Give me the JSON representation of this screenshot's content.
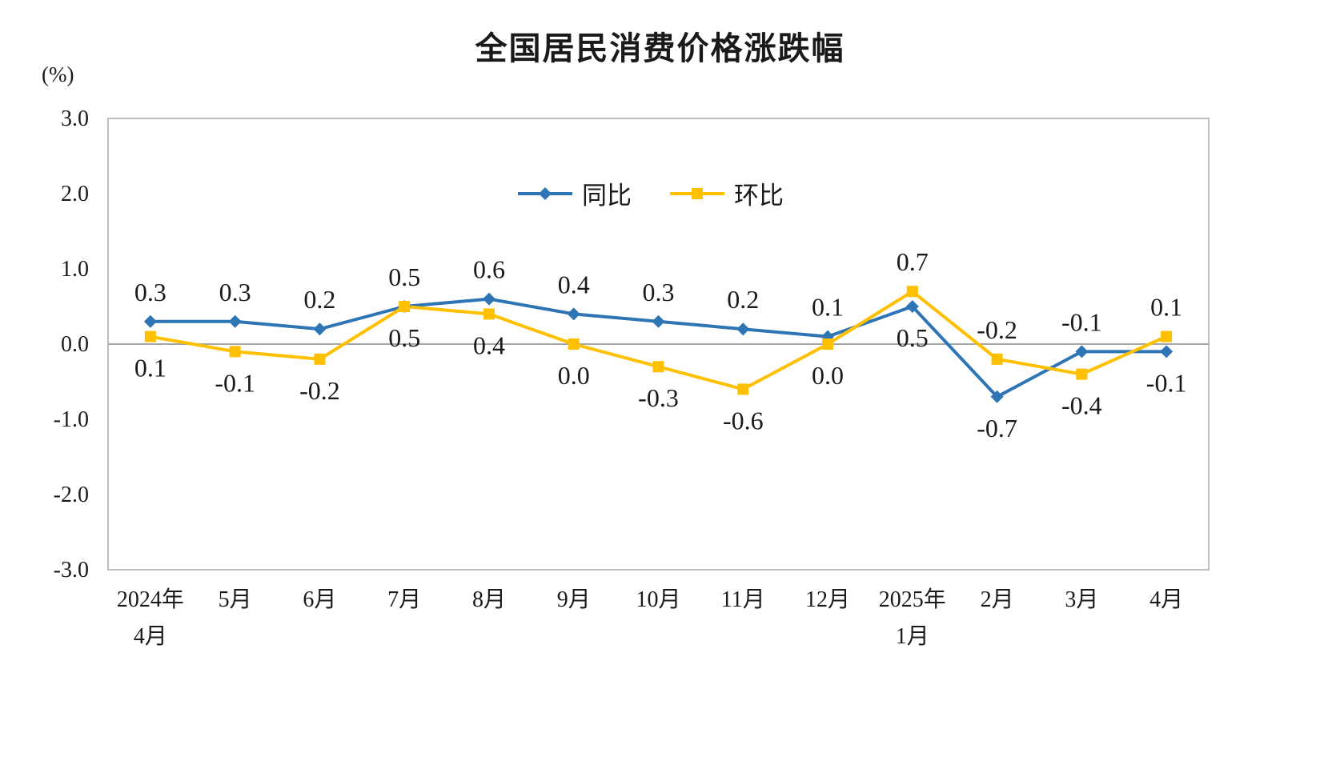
{
  "title": "全国居民消费价格涨跌幅",
  "unit_label": "(%)",
  "chart_data": {
    "type": "line",
    "title": "全国居民消费价格涨跌幅",
    "ylabel": "(%)",
    "categories": [
      [
        "2024年",
        "4月"
      ],
      [
        "5月"
      ],
      [
        "6月"
      ],
      [
        "7月"
      ],
      [
        "8月"
      ],
      [
        "9月"
      ],
      [
        "10月"
      ],
      [
        "11月"
      ],
      [
        "12月"
      ],
      [
        "2025年",
        "1月"
      ],
      [
        "2月"
      ],
      [
        "3月"
      ],
      [
        "4月"
      ]
    ],
    "series": [
      {
        "name": "同比",
        "marker": "diamond",
        "color": "#2E75B6",
        "values": [
          0.3,
          0.3,
          0.2,
          0.5,
          0.6,
          0.4,
          0.3,
          0.2,
          0.1,
          0.5,
          -0.7,
          -0.1,
          -0.1
        ]
      },
      {
        "name": "环比",
        "marker": "square",
        "color": "#FFC000",
        "values": [
          0.1,
          -0.1,
          -0.2,
          0.5,
          0.4,
          0.0,
          -0.3,
          -0.6,
          0.0,
          0.7,
          -0.2,
          -0.4,
          0.1
        ]
      }
    ],
    "ylim": [
      -3.0,
      3.0
    ],
    "yticks": [
      3.0,
      2.0,
      1.0,
      0.0,
      -1.0,
      -2.0,
      -3.0
    ],
    "grid": "zero-line-only",
    "legend_position": "top-center-inside",
    "colors": {
      "plot_border": "#BFBFBF",
      "zero_line": "#A6A6A6",
      "text": "#1a1a1a"
    }
  }
}
